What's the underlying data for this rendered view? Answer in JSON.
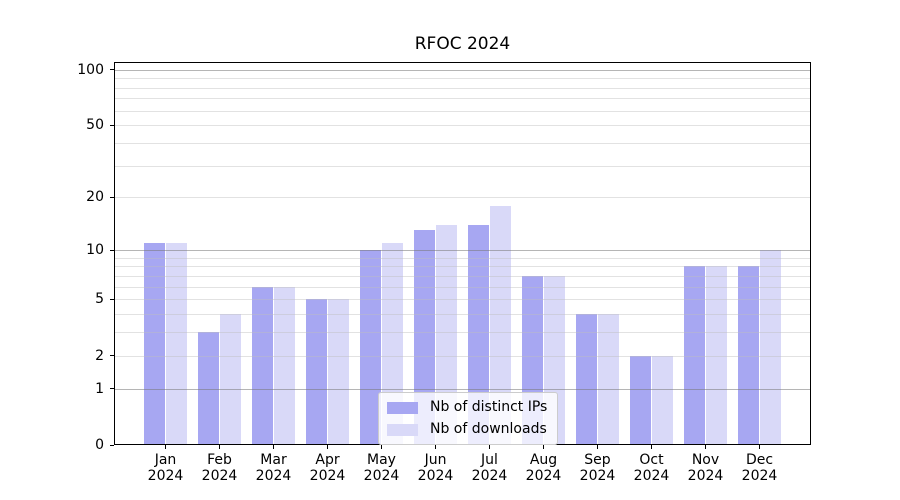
{
  "title": "RFOC 2024",
  "chart_data": {
    "type": "bar",
    "title": "RFOC 2024",
    "categories": [
      "Jan",
      "Feb",
      "Mar",
      "Apr",
      "May",
      "Jun",
      "Jul",
      "Aug",
      "Sep",
      "Oct",
      "Nov",
      "Dec"
    ],
    "category_year_line": "2024",
    "series": [
      {
        "name": "Nb of distinct IPs",
        "color": "#a7a7f2",
        "values": [
          11,
          3,
          6,
          5,
          10,
          13,
          14,
          7,
          4,
          2,
          8,
          8
        ]
      },
      {
        "name": "Nb of downloads",
        "color": "#d9d9f8",
        "values": [
          11,
          4,
          6,
          5,
          11,
          14,
          18,
          7,
          4,
          2,
          8,
          10
        ]
      }
    ],
    "xlabel": "",
    "ylabel": "",
    "y_axis": {
      "scale": "log1p",
      "ticks": [
        0,
        1,
        2,
        5,
        10,
        20,
        50,
        100
      ],
      "ylim": [
        0,
        110
      ]
    },
    "grid": {
      "on": true,
      "major_lines": [
        1,
        10,
        100
      ],
      "minor_lines": [
        2,
        3,
        4,
        5,
        6,
        7,
        8,
        9,
        20,
        30,
        40,
        50,
        60,
        70,
        80,
        90
      ]
    },
    "legend_position": "lower center"
  }
}
